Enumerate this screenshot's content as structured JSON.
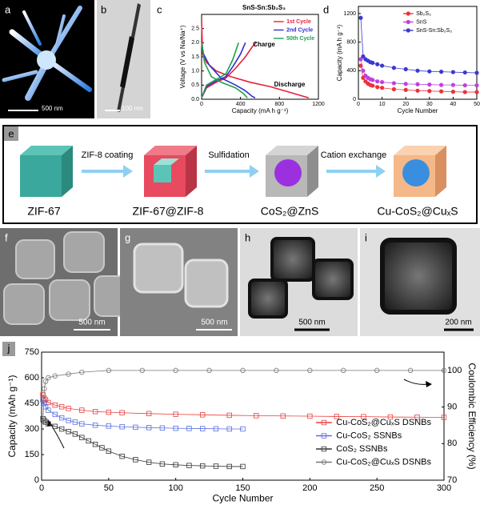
{
  "panel_labels": [
    "a",
    "b",
    "c",
    "d",
    "e",
    "f",
    "g",
    "h",
    "i",
    "j"
  ],
  "scale_bars": {
    "a": "500 nm",
    "b": "100 nm",
    "f": "500 nm",
    "g": "500 nm",
    "h": "500 nm",
    "i": "200 nm"
  },
  "scheme": {
    "stages": [
      "ZIF-67",
      "ZIF-67@ZIF-8",
      "CoS₂@ZnS",
      "Cu-CoS₂@CuₓS"
    ],
    "steps": [
      "ZIF-8 coating",
      "Sulfidation",
      "Cation exchange"
    ]
  },
  "chart_data": [
    {
      "type": "line",
      "title": "SnS-Sn:Sb₂S₃",
      "xlabel": "Capacity (mA h g⁻¹)",
      "ylabel": "Voltage (V vs Na/Na⁺)",
      "xlim": [
        0,
        1200
      ],
      "xticks": [
        0,
        400,
        800,
        1200
      ],
      "ylim": [
        0,
        3.0
      ],
      "yticks": [
        {
          "value": 0,
          "label": "0.0"
        },
        0.5,
        {
          "value": 1,
          "label": "1.0"
        },
        1.5,
        {
          "value": 2,
          "label": "2.0"
        },
        2.5
      ],
      "legend": "upper right",
      "annotations": [
        "Charge",
        "Discharge"
      ],
      "series": [
        {
          "name": "1st Cycle",
          "color": "#e8203a",
          "x": [
            0,
            10,
            50,
            150,
            300,
            500,
            700,
            900,
            1050,
            1100,
            null,
            0,
            50,
            150,
            250,
            350,
            450,
            520,
            560
          ],
          "values": [
            2.8,
            1.6,
            1.3,
            1.0,
            0.8,
            0.6,
            0.45,
            0.25,
            0.1,
            0.05,
            null,
            0.05,
            0.4,
            0.6,
            0.75,
            1.1,
            1.5,
            1.85,
            2.0
          ]
        },
        {
          "name": "2nd Cycle",
          "color": "#3030d0",
          "x": [
            0,
            20,
            80,
            200,
            350,
            450,
            520,
            550,
            null,
            0,
            50,
            150,
            250,
            330,
            400,
            450
          ],
          "values": [
            2.0,
            1.6,
            1.2,
            0.75,
            0.5,
            0.3,
            0.1,
            0.05,
            null,
            0.05,
            0.45,
            0.65,
            0.8,
            1.2,
            1.6,
            2.0
          ]
        },
        {
          "name": "50th Cycle",
          "color": "#20a050",
          "x": [
            0,
            30,
            100,
            200,
            350,
            430,
            470,
            null,
            0,
            50,
            150,
            250,
            320,
            380
          ],
          "values": [
            2.0,
            1.3,
            0.8,
            0.6,
            0.4,
            0.2,
            0.05,
            null,
            0.05,
            0.5,
            0.7,
            0.9,
            1.4,
            2.0
          ]
        }
      ]
    },
    {
      "type": "line",
      "xlabel": "Cycle Number",
      "ylabel": "Capacity (mA h g⁻¹)",
      "xlim": [
        0,
        50
      ],
      "xticks": [
        0,
        10,
        20,
        30,
        40,
        50
      ],
      "ylim": [
        0,
        1300
      ],
      "yticks": [
        0,
        400,
        800,
        1200
      ],
      "legend": "upper right",
      "x": [
        1,
        2,
        3,
        4,
        5,
        6,
        8,
        10,
        15,
        20,
        25,
        30,
        35,
        40,
        45,
        50
      ],
      "series": [
        {
          "name": "Sb₂S₃",
          "color": "#e8333a",
          "marker": "circle",
          "values": [
            470,
            300,
            250,
            220,
            200,
            190,
            170,
            160,
            140,
            130,
            120,
            115,
            110,
            105,
            100,
            100
          ]
        },
        {
          "name": "SnS",
          "color": "#c040e0",
          "marker": "circle",
          "values": [
            560,
            400,
            330,
            300,
            280,
            270,
            250,
            240,
            225,
            215,
            210,
            205,
            200,
            200,
            195,
            195
          ]
        },
        {
          "name": "SnS-Sn:Sb₂S₃",
          "color": "#3a3acd",
          "marker": "circle",
          "values": [
            1140,
            600,
            560,
            540,
            520,
            510,
            490,
            470,
            440,
            420,
            400,
            390,
            385,
            380,
            375,
            370
          ]
        }
      ]
    },
    {
      "type": "line",
      "xlabel": "Cycle Number",
      "ylabel": "Capacity (mAh g⁻¹)",
      "y2label": "Coulombic Efficiency (%)",
      "xlim": [
        0,
        300
      ],
      "xticks": [
        0,
        50,
        100,
        150,
        200,
        250,
        300
      ],
      "ylim": [
        0,
        750
      ],
      "yticks": [
        0,
        150,
        300,
        450,
        600,
        750
      ],
      "y2lim": [
        70,
        105
      ],
      "y2ticks": [
        70,
        80,
        90,
        100
      ],
      "legend": "lower right",
      "series": [
        {
          "name": "Cu-CoS₂@CuₓS DSNBs",
          "color": "#e84040",
          "marker": "open-square",
          "x": [
            1,
            2,
            3,
            5,
            10,
            15,
            20,
            30,
            40,
            50,
            60,
            80,
            100,
            120,
            140,
            160,
            180,
            200,
            220,
            240,
            260,
            280,
            300
          ],
          "values": [
            500,
            480,
            470,
            455,
            440,
            430,
            420,
            410,
            402,
            398,
            395,
            390,
            386,
            383,
            380,
            378,
            376,
            375,
            373,
            372,
            370,
            369,
            368
          ]
        },
        {
          "name": "Cu-CoS₂ SSNBs",
          "color": "#5a6ee0",
          "marker": "open-square",
          "x": [
            1,
            2,
            3,
            5,
            10,
            15,
            20,
            25,
            30,
            40,
            50,
            60,
            70,
            80,
            90,
            100,
            110,
            120,
            130,
            140,
            150
          ],
          "values": [
            470,
            450,
            430,
            410,
            385,
            365,
            350,
            340,
            330,
            322,
            317,
            313,
            310,
            308,
            306,
            304,
            303,
            302,
            301,
            300,
            300
          ]
        },
        {
          "name": "CoS₂ SSNBs",
          "color": "#333333",
          "marker": "open-square",
          "x": [
            1,
            2,
            3,
            5,
            10,
            15,
            20,
            25,
            30,
            35,
            40,
            45,
            50,
            60,
            70,
            80,
            90,
            100,
            110,
            120,
            130,
            140,
            150
          ],
          "values": [
            360,
            350,
            340,
            330,
            315,
            300,
            285,
            270,
            250,
            230,
            210,
            190,
            170,
            140,
            120,
            105,
            95,
            90,
            86,
            84,
            82,
            80,
            80
          ]
        },
        {
          "name": "Cu-CoS₂@CuₓS DSNBs",
          "color": "#777777",
          "marker": "open-circle",
          "axis": "y2",
          "x": [
            1,
            2,
            3,
            5,
            10,
            20,
            30,
            50,
            75,
            100,
            125,
            150,
            175,
            200,
            225,
            250,
            275,
            300
          ],
          "values": [
            86,
            95,
            97,
            98,
            98.5,
            99,
            99.5,
            100,
            100,
            100,
            100,
            100,
            100,
            100,
            100,
            100,
            100,
            100
          ]
        }
      ]
    }
  ]
}
